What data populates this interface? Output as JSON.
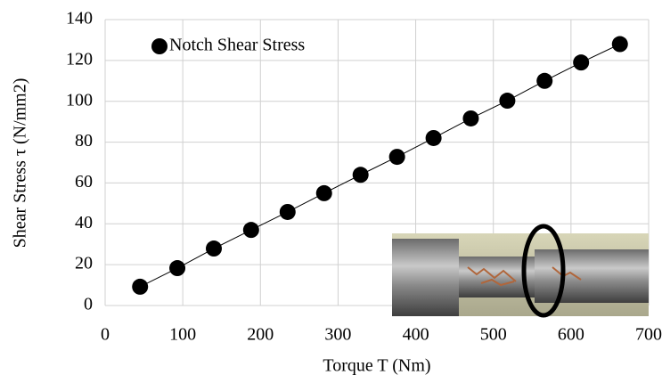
{
  "chart_data": {
    "type": "line",
    "x_label": "Torque T (Nm)",
    "y_label": "Shear Stress τ (N/mm2)",
    "x": [
      45,
      93,
      140,
      188,
      235,
      282,
      329,
      376,
      423,
      471,
      518,
      566,
      613,
      663
    ],
    "series": [
      {
        "name": "Notch Shear Stress",
        "color": "#000000",
        "values": [
          9.2,
          18.3,
          27.9,
          37,
          45.8,
          55,
          64,
          72.8,
          82,
          91.6,
          100.3,
          110,
          119,
          128
        ]
      }
    ],
    "xlim": [
      0,
      700
    ],
    "xticks": [
      0,
      100,
      200,
      300,
      400,
      500,
      600,
      700
    ],
    "ylim": [
      0,
      140
    ],
    "yticks": [
      0,
      20,
      40,
      60,
      80,
      100,
      120,
      140
    ],
    "grid": true,
    "legend": "top-left",
    "markers": true
  }
}
